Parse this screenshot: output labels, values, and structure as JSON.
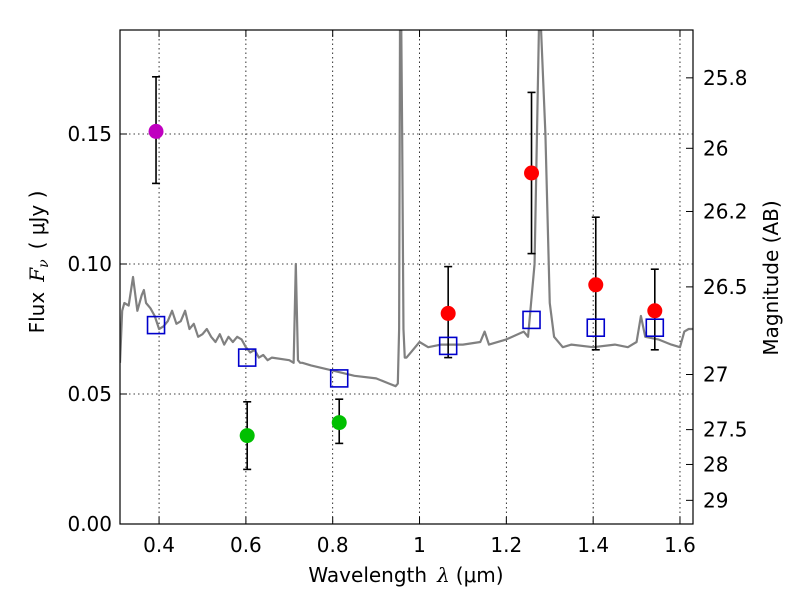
{
  "chart_data": {
    "type": "scatter",
    "title": "",
    "xlabel": "Wavelength",
    "xlabel_symbol": "λ",
    "xlabel_units": "(μm)",
    "ylabel": "Flux",
    "ylabel_symbol": "F",
    "ylabel_subscript": "ν",
    "ylabel_units": "( μJy )",
    "y2label": "Magnitude (AB)",
    "xlim": [
      0.31,
      1.63
    ],
    "ylim": [
      0.0,
      0.19
    ],
    "xticks": [
      0.4,
      0.6,
      0.8,
      1.0,
      1.2,
      1.4,
      1.6
    ],
    "xtick_labels": [
      "0.4",
      "0.6",
      "0.8",
      "1",
      "1.2",
      "1.4",
      "1.6"
    ],
    "yticks": [
      0.0,
      0.05,
      0.1,
      0.15
    ],
    "ytick_labels": [
      "0.00",
      "0.05",
      "0.10",
      "0.15"
    ],
    "y2ticks": [
      {
        "label": "25.8",
        "flux": 0.1716
      },
      {
        "label": "26",
        "flux": 0.1445
      },
      {
        "label": "26.2",
        "flux": 0.1202
      },
      {
        "label": "26.5",
        "flux": 0.0912
      },
      {
        "label": "27",
        "flux": 0.0575
      },
      {
        "label": "27.5",
        "flux": 0.0363
      },
      {
        "label": "28",
        "flux": 0.0229
      },
      {
        "label": "29",
        "flux": 0.0091
      }
    ],
    "grid": true,
    "model_spectrum": {
      "name": "model SED",
      "color": "#808080",
      "x": [
        0.31,
        0.315,
        0.32,
        0.33,
        0.34,
        0.35,
        0.36,
        0.365,
        0.37,
        0.38,
        0.39,
        0.4,
        0.41,
        0.42,
        0.43,
        0.44,
        0.45,
        0.46,
        0.47,
        0.48,
        0.49,
        0.5,
        0.51,
        0.52,
        0.53,
        0.54,
        0.55,
        0.56,
        0.57,
        0.58,
        0.59,
        0.6,
        0.61,
        0.62,
        0.63,
        0.64,
        0.65,
        0.66,
        0.7,
        0.71,
        0.715,
        0.72,
        0.725,
        0.73,
        0.75,
        0.8,
        0.85,
        0.9,
        0.93,
        0.945,
        0.95,
        0.953,
        0.955,
        0.958,
        0.96,
        0.963,
        0.966,
        0.97,
        0.98,
        1.0,
        1.02,
        1.05,
        1.1,
        1.14,
        1.15,
        1.16,
        1.2,
        1.24,
        1.25,
        1.265,
        1.275,
        1.28,
        1.29,
        1.3,
        1.31,
        1.33,
        1.35,
        1.4,
        1.45,
        1.48,
        1.5,
        1.51,
        1.52,
        1.55,
        1.58,
        1.6,
        1.61,
        1.62,
        1.63
      ],
      "y": [
        0.062,
        0.082,
        0.085,
        0.084,
        0.095,
        0.082,
        0.088,
        0.09,
        0.085,
        0.083,
        0.08,
        0.075,
        0.076,
        0.078,
        0.082,
        0.077,
        0.078,
        0.082,
        0.075,
        0.077,
        0.072,
        0.073,
        0.075,
        0.072,
        0.07,
        0.073,
        0.069,
        0.072,
        0.07,
        0.072,
        0.071,
        0.068,
        0.066,
        0.067,
        0.064,
        0.065,
        0.063,
        0.064,
        0.063,
        0.062,
        0.1,
        0.063,
        0.062,
        0.062,
        0.061,
        0.059,
        0.057,
        0.056,
        0.054,
        0.053,
        0.054,
        0.075,
        0.19,
        0.19,
        0.15,
        0.075,
        0.064,
        0.064,
        0.066,
        0.07,
        0.068,
        0.069,
        0.069,
        0.07,
        0.074,
        0.069,
        0.071,
        0.074,
        0.072,
        0.1,
        0.19,
        0.19,
        0.15,
        0.085,
        0.072,
        0.068,
        0.069,
        0.068,
        0.069,
        0.068,
        0.07,
        0.08,
        0.072,
        0.071,
        0.069,
        0.068,
        0.074,
        0.075,
        0.075
      ]
    },
    "series": [
      {
        "name": "magenta",
        "color": "#c000c0",
        "marker": "circle",
        "points": [
          {
            "x": 0.393,
            "y": 0.151,
            "ylo": 0.131,
            "yhi": 0.172
          }
        ]
      },
      {
        "name": "green",
        "color": "#00c000",
        "marker": "circle",
        "points": [
          {
            "x": 0.603,
            "y": 0.034,
            "ylo": 0.021,
            "yhi": 0.047
          },
          {
            "x": 0.815,
            "y": 0.039,
            "ylo": 0.031,
            "yhi": 0.048
          }
        ]
      },
      {
        "name": "red",
        "color": "#ff0000",
        "marker": "circle",
        "points": [
          {
            "x": 1.066,
            "y": 0.081,
            "ylo": 0.064,
            "yhi": 0.099
          },
          {
            "x": 1.258,
            "y": 0.135,
            "ylo": 0.104,
            "yhi": 0.166
          },
          {
            "x": 1.406,
            "y": 0.092,
            "ylo": 0.067,
            "yhi": 0.118
          },
          {
            "x": 1.542,
            "y": 0.082,
            "ylo": 0.067,
            "yhi": 0.098
          }
        ]
      },
      {
        "name": "model photometry",
        "color": "#0000cc",
        "marker": "open-square",
        "points": [
          {
            "x": 0.393,
            "y": 0.0765
          },
          {
            "x": 0.603,
            "y": 0.064
          },
          {
            "x": 0.815,
            "y": 0.056
          },
          {
            "x": 1.066,
            "y": 0.0685
          },
          {
            "x": 1.258,
            "y": 0.0785
          },
          {
            "x": 1.406,
            "y": 0.0755
          },
          {
            "x": 1.542,
            "y": 0.0755
          }
        ]
      }
    ]
  }
}
